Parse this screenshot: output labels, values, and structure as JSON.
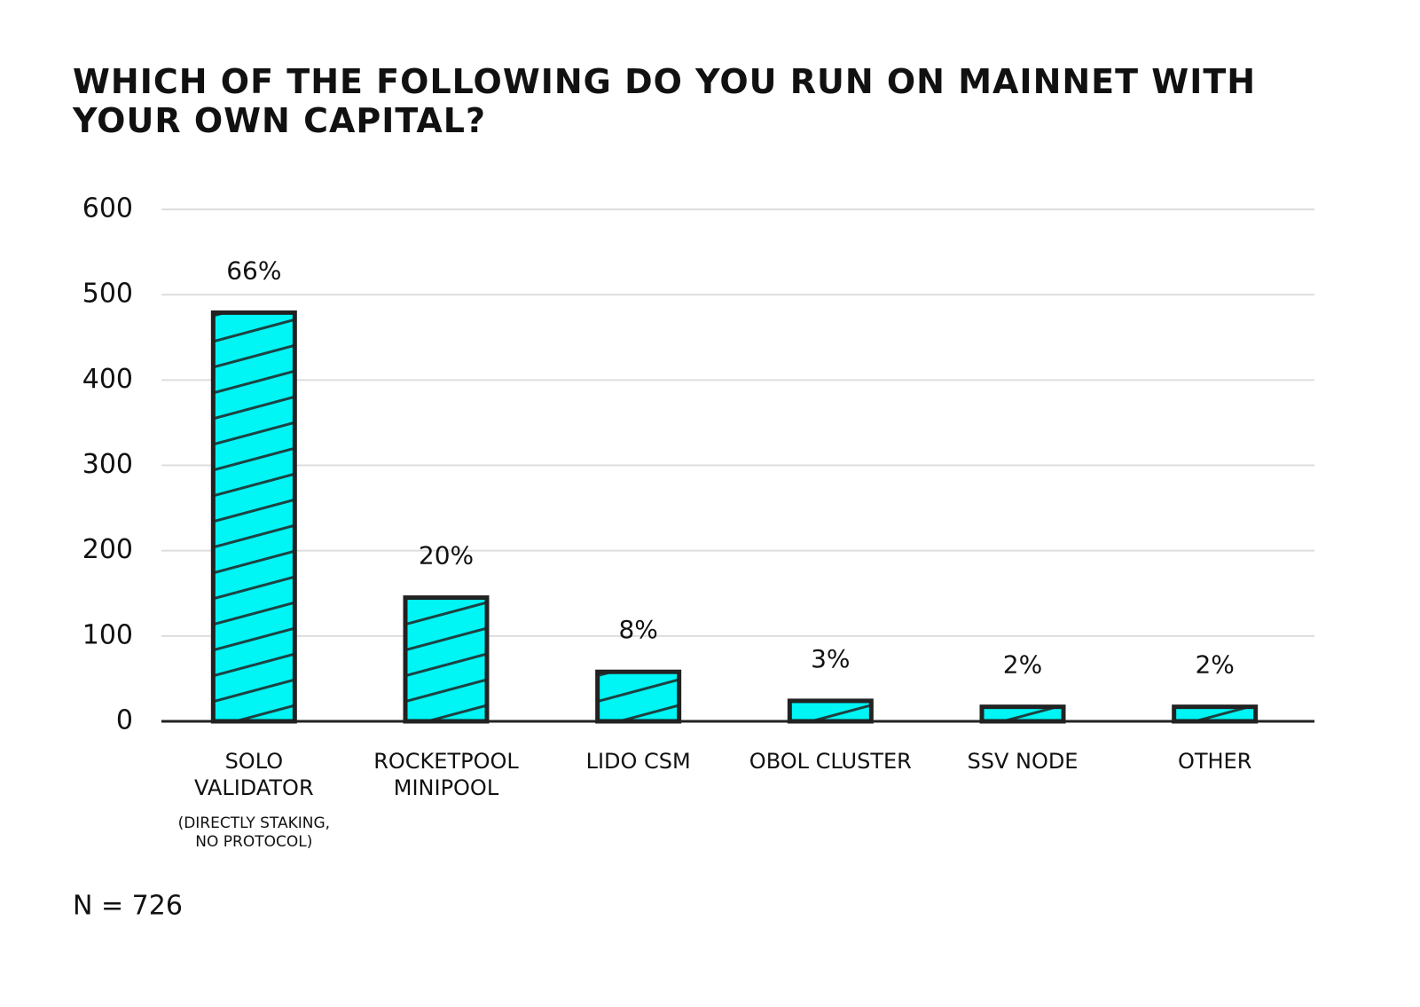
{
  "chart_data": {
    "type": "bar",
    "title": "WHICH OF THE FOLLOWING DO YOU RUN ON MAINNET WITH YOUR OWN CAPITAL?",
    "categories": [
      "SOLO\nVALIDATOR",
      "ROCKETPOOL\nMINIPOOL",
      "LIDO CSM",
      "OBOL CLUSTER",
      "SSV NODE",
      "OTHER"
    ],
    "category_note": "(DIRECTLY STAKING,\nNO PROTOCOL)",
    "values": [
      479,
      145,
      58,
      24,
      17,
      17
    ],
    "percent_labels": [
      "66%",
      "20%",
      "8%",
      "3%",
      "2%",
      "2%"
    ],
    "color": "#00f5f5",
    "ylim": [
      0,
      600
    ],
    "yticks": [
      0,
      100,
      200,
      300,
      400,
      500,
      600
    ],
    "grid": true,
    "footnote": "N = 726"
  }
}
